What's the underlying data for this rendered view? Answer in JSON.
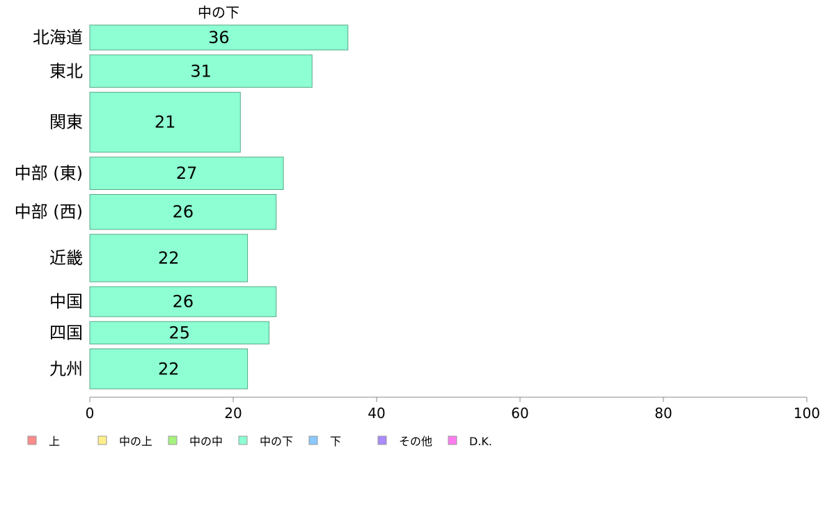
{
  "chart_data": {
    "type": "bar",
    "orientation": "horizontal",
    "title": "中の下",
    "categories": [
      "北海道",
      "東北",
      "関東",
      "中部 (東)",
      "中部 (西)",
      "近畿",
      "中国",
      "四国",
      "九州"
    ],
    "values": [
      36,
      31,
      21,
      27,
      26,
      22,
      26,
      25,
      22
    ],
    "bar_weights": [
      1.0,
      1.3,
      2.4,
      1.3,
      1.4,
      1.9,
      1.2,
      0.9,
      1.6
    ],
    "xlim": [
      0,
      100
    ],
    "xticks": [
      "0",
      "20",
      "40",
      "60",
      "80",
      "100"
    ],
    "xlabel": "",
    "ylabel": "",
    "grid": false,
    "bar_color": "#8dffd2",
    "bar_stroke": "#5aa888",
    "legend": {
      "placement": "bottom",
      "items": [
        {
          "label": "上",
          "color": "#ff8a8a"
        },
        {
          "label": "中の上",
          "color": "#fff08a"
        },
        {
          "label": "中の中",
          "color": "#a6f27e"
        },
        {
          "label": "中の下",
          "color": "#8dffd2"
        },
        {
          "label": "下",
          "color": "#8ac8ff"
        },
        {
          "label": "その他",
          "color": "#a98aff"
        },
        {
          "label": "D.K.",
          "color": "#ff7bf0"
        }
      ]
    }
  }
}
